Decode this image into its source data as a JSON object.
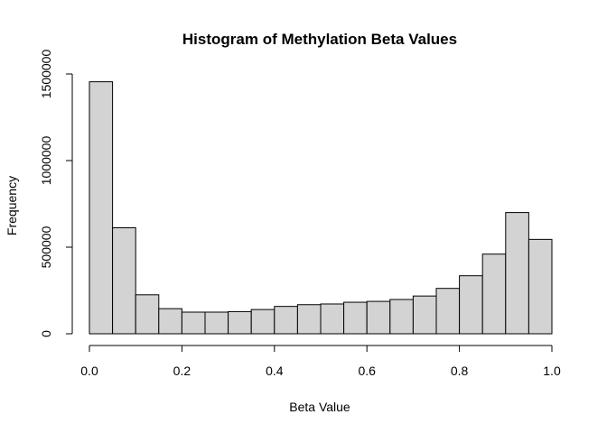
{
  "chart_data": {
    "type": "bar",
    "title": "Histogram of Methylation Beta Values",
    "xlabel": "Beta Value",
    "ylabel": "Frequency",
    "xlim": [
      0,
      1
    ],
    "ylim": [
      0,
      1500000
    ],
    "bar_fill": "#d3d3d3",
    "bar_edge": "#000000",
    "grid": false,
    "bin_edges": [
      0.0,
      0.05,
      0.1,
      0.15,
      0.2,
      0.25,
      0.3,
      0.35,
      0.4,
      0.45,
      0.5,
      0.55,
      0.6,
      0.65,
      0.7,
      0.75,
      0.8,
      0.85,
      0.9,
      0.95,
      1.0
    ],
    "values": [
      1455000,
      612000,
      225000,
      145000,
      125000,
      125000,
      128000,
      140000,
      158000,
      168000,
      172000,
      182000,
      187000,
      198000,
      218000,
      262000,
      335000,
      460000,
      700000,
      545000
    ],
    "x_ticks": [
      {
        "value": 0.0,
        "label": "0.0"
      },
      {
        "value": 0.2,
        "label": "0.2"
      },
      {
        "value": 0.4,
        "label": "0.4"
      },
      {
        "value": 0.6,
        "label": "0.6"
      },
      {
        "value": 0.8,
        "label": "0.8"
      },
      {
        "value": 1.0,
        "label": "1.0"
      }
    ],
    "y_ticks": [
      {
        "value": 0,
        "label": "0"
      },
      {
        "value": 500000,
        "label": "500000"
      },
      {
        "value": 1000000,
        "label": "1000000"
      },
      {
        "value": 1500000,
        "label": "1500000"
      }
    ]
  }
}
